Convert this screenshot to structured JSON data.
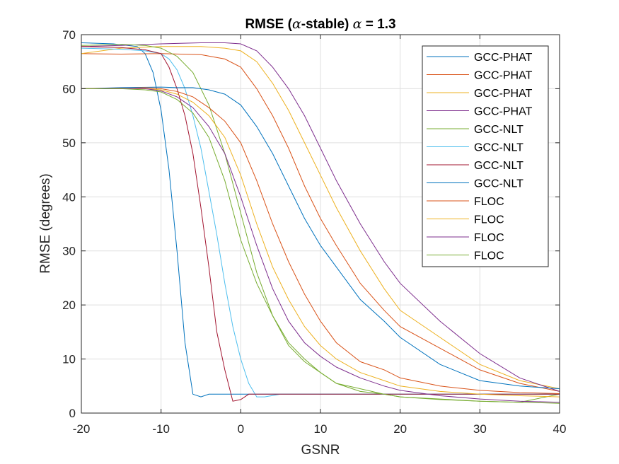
{
  "chart_data": {
    "type": "line",
    "title": {
      "prefix": "RMSE (",
      "alpha1": "α",
      "middle": "-stable) ",
      "alpha2": "α",
      "suffix": " = 1.3"
    },
    "xlabel": "GSNR",
    "ylabel": "RMSE (degrees)",
    "xlim": [
      -20,
      40
    ],
    "ylim": [
      0,
      70
    ],
    "xticks": [
      -20,
      -10,
      0,
      10,
      20,
      30,
      40
    ],
    "yticks": [
      0,
      10,
      20,
      30,
      40,
      50,
      60,
      70
    ],
    "grid": true,
    "legend_position": "top-right",
    "series": [
      {
        "name": "GCC-PHAT",
        "color": "#0072BD",
        "x": [
          -20,
          -16,
          -13,
          -12,
          -11,
          -10,
          -9,
          -8,
          -7,
          -6,
          -5,
          -4,
          -3,
          0,
          5,
          10,
          20,
          30,
          40
        ],
        "y": [
          68.5,
          68.3,
          67.8,
          66.5,
          63,
          56,
          45,
          30,
          13,
          3.5,
          3.0,
          3.5,
          3.5,
          3.5,
          3.5,
          3.5,
          3.5,
          3.5,
          3.5
        ]
      },
      {
        "name": "GCC-PHAT",
        "color": "#D95319",
        "x": [
          -20,
          -15,
          -10,
          -5,
          -2,
          0,
          2,
          4,
          6,
          8,
          10,
          12,
          15,
          18,
          20,
          25,
          30,
          35,
          40
        ],
        "y": [
          66.5,
          66.4,
          66.5,
          66.3,
          65.5,
          64,
          60,
          55,
          49,
          42,
          36,
          31,
          24,
          19,
          16,
          12,
          8,
          5.5,
          4
        ]
      },
      {
        "name": "GCC-PHAT",
        "color": "#EDB120",
        "x": [
          -20,
          -15,
          -10,
          -5,
          -2,
          0,
          2,
          4,
          6,
          8,
          10,
          12,
          15,
          18,
          20,
          25,
          30,
          35,
          40
        ],
        "y": [
          66.5,
          67.5,
          67.8,
          67.8,
          67.5,
          67,
          65,
          61,
          56,
          50,
          44,
          38,
          30,
          23,
          19,
          14,
          9,
          6,
          4.5
        ]
      },
      {
        "name": "GCC-PHAT",
        "color": "#7E2F8E",
        "x": [
          -20,
          -15,
          -10,
          -5,
          -2,
          0,
          2,
          4,
          6,
          8,
          10,
          12,
          15,
          18,
          20,
          25,
          30,
          35,
          40
        ],
        "y": [
          67.8,
          68,
          68.3,
          68.5,
          68.5,
          68.3,
          67,
          64,
          60,
          55,
          49,
          43,
          35,
          28,
          24,
          17,
          11,
          6.5,
          4
        ]
      },
      {
        "name": "GCC-NLT",
        "color": "#77AC30",
        "x": [
          -20,
          -15,
          -12,
          -10,
          -8,
          -6,
          -4,
          -2,
          0,
          2,
          4,
          6,
          8,
          10,
          12,
          15,
          18,
          20,
          25,
          30,
          35,
          40
        ],
        "y": [
          68,
          68.2,
          68,
          67.5,
          66,
          63,
          57,
          48,
          37,
          26,
          18,
          12.5,
          9.5,
          7.5,
          5.5,
          4.5,
          3.5,
          3.0,
          2.5,
          2.2,
          2.0,
          3.5
        ]
      },
      {
        "name": "GCC-NLT",
        "color": "#4DBEEE",
        "x": [
          -20,
          -15,
          -12,
          -10,
          -9,
          -8,
          -7,
          -6,
          -5,
          -4,
          -3,
          -2,
          -1,
          0,
          1,
          2,
          3,
          5,
          10,
          20,
          30,
          40
        ],
        "y": [
          67.5,
          67.3,
          67,
          66.5,
          65.5,
          63.5,
          60,
          55,
          49,
          41,
          33,
          24,
          16,
          10,
          5.5,
          3.0,
          3.0,
          3.5,
          3.5,
          3.5,
          3.5,
          3.5
        ]
      },
      {
        "name": "GCC-NLT",
        "color": "#A2142F",
        "x": [
          -20,
          -15,
          -12,
          -10,
          -9,
          -8,
          -7,
          -6,
          -5,
          -4,
          -3,
          -2,
          -1,
          0,
          1,
          3,
          5,
          10,
          20,
          30,
          40
        ],
        "y": [
          67.8,
          67.6,
          67.2,
          66.5,
          64,
          60,
          55,
          48,
          38,
          27,
          15,
          8,
          2.2,
          2.5,
          3.5,
          3.5,
          3.5,
          3.5,
          3.5,
          3.5,
          3.5
        ]
      },
      {
        "name": "GCC-NLT",
        "color": "#0072BD",
        "x": [
          -20,
          -15,
          -10,
          -8,
          -6,
          -4,
          -2,
          0,
          2,
          4,
          6,
          8,
          10,
          12,
          15,
          18,
          20,
          25,
          30,
          35,
          40
        ],
        "y": [
          60,
          60.2,
          60.3,
          60.2,
          60.2,
          59.8,
          59,
          57,
          53,
          48,
          42,
          36,
          31,
          27,
          21,
          17,
          14,
          9,
          6,
          5,
          4.5
        ]
      },
      {
        "name": "FLOC",
        "color": "#D95319",
        "x": [
          -20,
          -15,
          -12,
          -10,
          -8,
          -6,
          -4,
          -2,
          0,
          2,
          4,
          6,
          8,
          10,
          12,
          15,
          18,
          20,
          25,
          30,
          35,
          40
        ],
        "y": [
          60,
          60,
          60.2,
          60,
          59.5,
          58.5,
          56.5,
          54,
          50,
          43,
          35,
          28,
          22,
          17,
          13,
          9.5,
          8,
          6.5,
          5,
          4.2,
          3.8,
          3.6
        ]
      },
      {
        "name": "FLOC",
        "color": "#EDB120",
        "x": [
          -20,
          -15,
          -12,
          -10,
          -8,
          -6,
          -4,
          -2,
          0,
          2,
          4,
          6,
          8,
          10,
          12,
          15,
          18,
          20,
          25,
          30,
          35,
          40
        ],
        "y": [
          60,
          60.1,
          60,
          59.8,
          59,
          57.5,
          55,
          51,
          44,
          35,
          27,
          21,
          16,
          12.5,
          10,
          7.5,
          6,
          5,
          4,
          3.5,
          3.2,
          3.0
        ]
      },
      {
        "name": "FLOC",
        "color": "#7E2F8E",
        "x": [
          -20,
          -15,
          -12,
          -10,
          -8,
          -6,
          -4,
          -2,
          0,
          2,
          4,
          6,
          8,
          10,
          12,
          15,
          18,
          20,
          25,
          30,
          35,
          40
        ],
        "y": [
          60,
          60.1,
          60,
          59.6,
          58.5,
          56.5,
          53,
          48,
          40,
          31,
          23,
          17,
          13,
          10.5,
          8.5,
          6.5,
          5,
          4.2,
          3.2,
          2.6,
          2.2,
          2.0
        ]
      },
      {
        "name": "FLOC",
        "color": "#77AC30",
        "x": [
          -20,
          -15,
          -12,
          -10,
          -8,
          -6,
          -4,
          -2,
          0,
          2,
          4,
          6,
          8,
          10,
          12,
          15,
          18,
          20,
          25,
          30,
          35,
          40
        ],
        "y": [
          60,
          60,
          59.8,
          59.4,
          58,
          55.5,
          51,
          43,
          32,
          24,
          18,
          13,
          10,
          7.5,
          5.5,
          4,
          3.5,
          3.0,
          2.6,
          2.2,
          2.0,
          1.8
        ]
      }
    ]
  }
}
